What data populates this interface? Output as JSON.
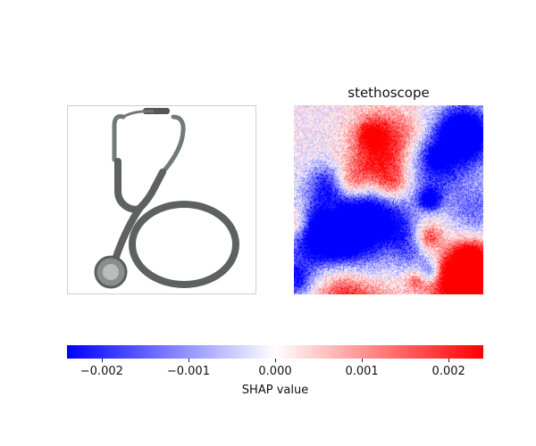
{
  "chart_data": {
    "type": "heatmap",
    "panels": [
      {
        "kind": "input-image",
        "title": "",
        "content": "stethoscope photo"
      },
      {
        "kind": "shap-map",
        "title": "stethoscope"
      }
    ],
    "colorbar": {
      "label": "SHAP value",
      "range": [
        -0.0024,
        0.0024
      ],
      "ticks": [
        {
          "value": -0.002,
          "label": "−0.002"
        },
        {
          "value": -0.001,
          "label": "−0.001"
        },
        {
          "value": 0.0,
          "label": "0.000"
        },
        {
          "value": 0.001,
          "label": "0.001"
        },
        {
          "value": 0.002,
          "label": "0.002"
        }
      ],
      "colors": {
        "negative": "#0000ff",
        "zero": "#ffffff",
        "positive": "#ff0000"
      }
    }
  }
}
